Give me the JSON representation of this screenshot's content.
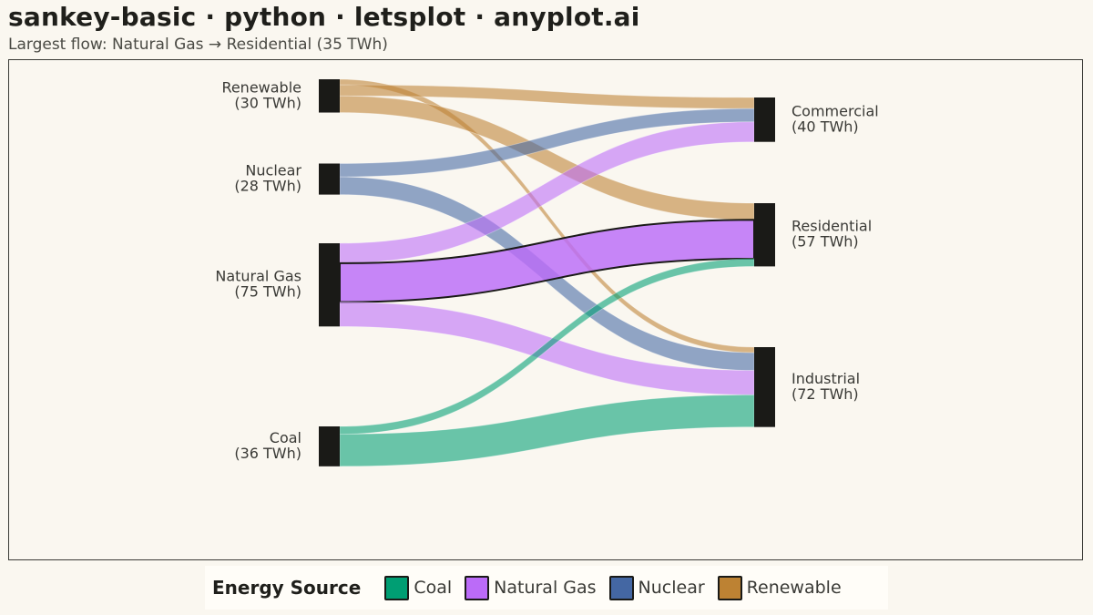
{
  "title": "sankey-basic · python · letsplot · anyplot.ai",
  "subtitle": "Largest flow: Natural Gas → Residential (35 TWh)",
  "chart_data": {
    "type": "sankey",
    "unit": "TWh",
    "sources": [
      {
        "name": "Renewable",
        "label": "(30 TWh)",
        "total": 30
      },
      {
        "name": "Nuclear",
        "label": "(28 TWh)",
        "total": 28
      },
      {
        "name": "Natural Gas",
        "label": "(75 TWh)",
        "total": 75
      },
      {
        "name": "Coal",
        "label": "(36 TWh)",
        "total": 36
      }
    ],
    "targets": [
      {
        "name": "Commercial",
        "label": "(40 TWh)",
        "total": 40
      },
      {
        "name": "Residential",
        "label": "(57 TWh)",
        "total": 57
      },
      {
        "name": "Industrial",
        "label": "(72 TWh)",
        "total": 72
      }
    ],
    "flows": [
      {
        "source": "Renewable",
        "target": "Industrial",
        "value": 5
      },
      {
        "source": "Renewable",
        "target": "Commercial",
        "value": 10
      },
      {
        "source": "Renewable",
        "target": "Residential",
        "value": 15
      },
      {
        "source": "Nuclear",
        "target": "Commercial",
        "value": 12
      },
      {
        "source": "Nuclear",
        "target": "Industrial",
        "value": 16
      },
      {
        "source": "Natural Gas",
        "target": "Commercial",
        "value": 18
      },
      {
        "source": "Natural Gas",
        "target": "Residential",
        "value": 35
      },
      {
        "source": "Natural Gas",
        "target": "Industrial",
        "value": 22
      },
      {
        "source": "Coal",
        "target": "Residential",
        "value": 7
      },
      {
        "source": "Coal",
        "target": "Industrial",
        "value": 29
      }
    ],
    "highlight": {
      "source": "Natural Gas",
      "target": "Residential"
    },
    "colors": {
      "Coal": "#009E73",
      "Natural Gas": "#BB6BF8",
      "Nuclear": "#4467A3",
      "Renewable": "#BD8233",
      "node": "#1A1A17"
    },
    "legend": {
      "title": "Energy Source",
      "position": "bottom",
      "items": [
        "Coal",
        "Natural Gas",
        "Nuclear",
        "Renewable"
      ]
    }
  }
}
